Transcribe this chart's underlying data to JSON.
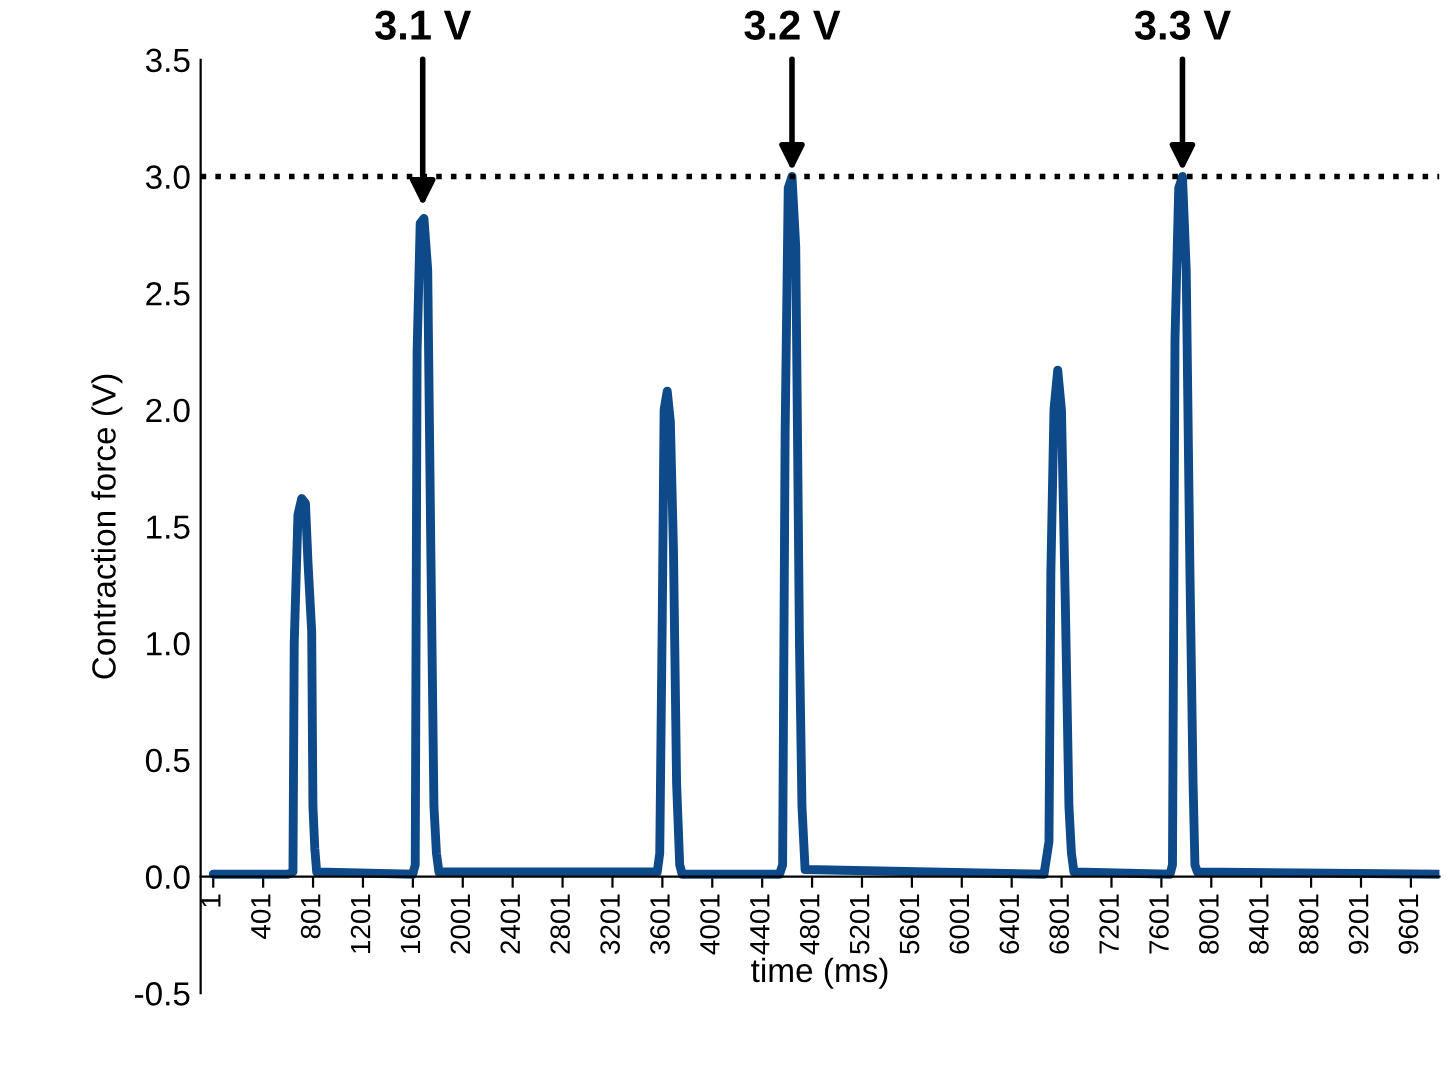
{
  "chart_data": {
    "type": "line",
    "xlabel": "time (ms)",
    "ylabel": "Contraction force (V)",
    "xlim": [
      -100,
      9830
    ],
    "xticks": [
      1,
      401,
      801,
      1201,
      1601,
      2001,
      2401,
      2801,
      3201,
      3601,
      4001,
      4401,
      4801,
      5201,
      5601,
      6001,
      6401,
      6801,
      7201,
      7601,
      8001,
      8401,
      8801,
      9201,
      9601
    ],
    "ylim": [
      -0.5,
      3.5
    ],
    "yticks": [
      {
        "value": -0.5,
        "label": "-0.5"
      },
      {
        "value": 0,
        "label": "0.0"
      },
      {
        "value": 0.5,
        "label": "0.5"
      },
      {
        "value": 1,
        "label": "1.0"
      },
      {
        "value": 1.5,
        "label": "1.5"
      },
      {
        "value": 2,
        "label": "2.0"
      },
      {
        "value": 2.5,
        "label": "2.5"
      },
      {
        "value": 3,
        "label": "3.0"
      },
      {
        "value": 3.5,
        "label": "3.5"
      }
    ],
    "grid": false,
    "legend": false,
    "marker": "none",
    "line_style": "solid",
    "ref_lines": [
      {
        "axis": "y",
        "value": 3.0,
        "color": "#000000",
        "line_style": "dotted"
      }
    ],
    "annotations": [
      {
        "text": "3.1 V",
        "x": 1680,
        "y": 2.85
      },
      {
        "text": "3.2 V",
        "x": 4640,
        "y": 3.0
      },
      {
        "text": "3.3 V",
        "x": 7770,
        "y": 3.0
      }
    ],
    "series": [
      {
        "color": "#0e4a8a",
        "x": [
          1,
          600,
          640,
          650,
          680,
          710,
          740,
          760,
          790,
          800,
          815,
          830,
          1600,
          1620,
          1635,
          1660,
          1690,
          1720,
          1745,
          1770,
          1790,
          1810,
          3560,
          3580,
          3600,
          3615,
          3640,
          3665,
          3690,
          3715,
          3740,
          3760,
          4540,
          4565,
          4585,
          4610,
          4640,
          4670,
          4700,
          4720,
          4745,
          6660,
          6700,
          6715,
          6740,
          6770,
          6800,
          6830,
          6860,
          6880,
          6900,
          7670,
          7690,
          7710,
          7740,
          7770,
          7800,
          7830,
          7855,
          7870,
          7890,
          9830
        ],
        "values": [
          0.01,
          0.01,
          0.02,
          1.0,
          1.55,
          1.62,
          1.6,
          1.35,
          1.05,
          0.3,
          0.12,
          0.02,
          0.01,
          0.05,
          2.25,
          2.8,
          2.82,
          2.6,
          1.4,
          0.3,
          0.1,
          0.02,
          0.02,
          0.1,
          1.1,
          2.0,
          2.08,
          1.95,
          1.4,
          0.4,
          0.05,
          0.01,
          0.01,
          0.05,
          1.9,
          2.95,
          3.0,
          2.7,
          1.0,
          0.3,
          0.03,
          0.01,
          0.15,
          1.3,
          2.0,
          2.17,
          2.0,
          1.2,
          0.3,
          0.1,
          0.02,
          0.01,
          0.05,
          2.3,
          2.95,
          3.0,
          2.6,
          1.3,
          0.4,
          0.05,
          0.02,
          0.01
        ]
      }
    ]
  }
}
